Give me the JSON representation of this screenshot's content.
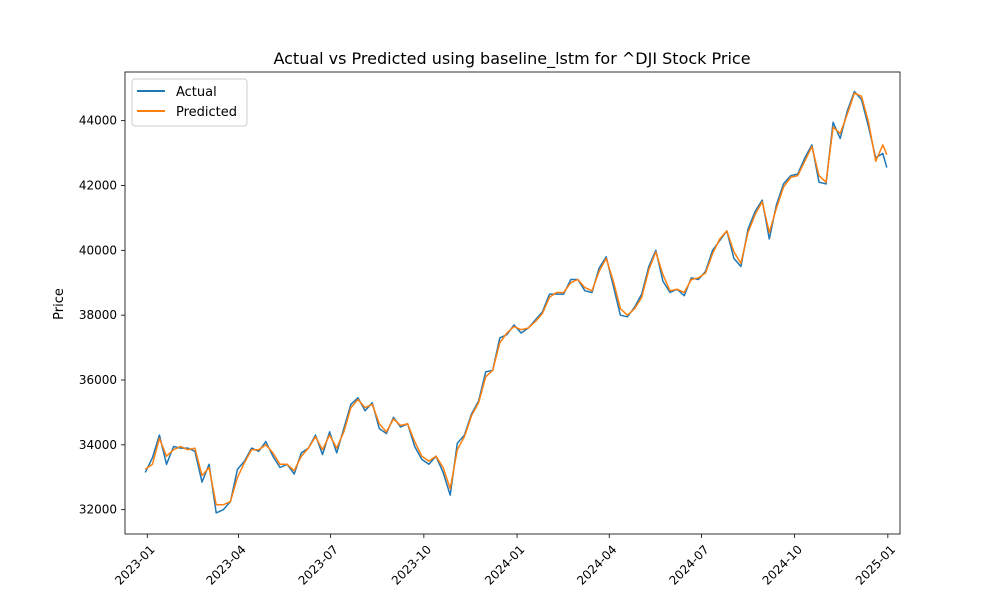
{
  "chart_data": {
    "type": "line",
    "title": "Actual vs Predicted using baseline_lstm for ^DJI Stock Price",
    "xlabel": "",
    "ylabel": "Price",
    "xlim": [
      "2022-12-10",
      "2025-01-13"
    ],
    "ylim": [
      31250,
      45500
    ],
    "x_ticks": [
      "2023-01",
      "2023-04",
      "2023-07",
      "2023-10",
      "2024-01",
      "2024-04",
      "2024-07",
      "2024-10",
      "2025-01"
    ],
    "y_ticks": [
      32000,
      34000,
      36000,
      38000,
      40000,
      42000,
      44000
    ],
    "grid": false,
    "legend_position": "top-left",
    "series": [
      {
        "name": "Actual",
        "color": "#1f77b4",
        "points": [
          [
            "2022-12-30",
            33150
          ],
          [
            "2023-01-06",
            33600
          ],
          [
            "2023-01-13",
            34300
          ],
          [
            "2023-01-20",
            33400
          ],
          [
            "2023-01-27",
            33950
          ],
          [
            "2023-02-03",
            33900
          ],
          [
            "2023-02-10",
            33900
          ],
          [
            "2023-02-17",
            33800
          ],
          [
            "2023-02-24",
            32850
          ],
          [
            "2023-03-03",
            33400
          ],
          [
            "2023-03-10",
            31900
          ],
          [
            "2023-03-17",
            32000
          ],
          [
            "2023-03-24",
            32250
          ],
          [
            "2023-03-31",
            33250
          ],
          [
            "2023-04-07",
            33500
          ],
          [
            "2023-04-14",
            33900
          ],
          [
            "2023-04-21",
            33800
          ],
          [
            "2023-04-28",
            34100
          ],
          [
            "2023-05-05",
            33650
          ],
          [
            "2023-05-12",
            33300
          ],
          [
            "2023-05-19",
            33400
          ],
          [
            "2023-05-26",
            33100
          ],
          [
            "2023-06-02",
            33750
          ],
          [
            "2023-06-09",
            33900
          ],
          [
            "2023-06-16",
            34300
          ],
          [
            "2023-06-23",
            33700
          ],
          [
            "2023-06-30",
            34400
          ],
          [
            "2023-07-07",
            33750
          ],
          [
            "2023-07-14",
            34500
          ],
          [
            "2023-07-21",
            35250
          ],
          [
            "2023-07-28",
            35450
          ],
          [
            "2023-08-04",
            35050
          ],
          [
            "2023-08-11",
            35300
          ],
          [
            "2023-08-18",
            34500
          ],
          [
            "2023-08-25",
            34350
          ],
          [
            "2023-09-01",
            34850
          ],
          [
            "2023-09-08",
            34550
          ],
          [
            "2023-09-15",
            34650
          ],
          [
            "2023-09-22",
            33950
          ],
          [
            "2023-09-29",
            33550
          ],
          [
            "2023-10-06",
            33400
          ],
          [
            "2023-10-13",
            33650
          ],
          [
            "2023-10-20",
            33150
          ],
          [
            "2023-10-27",
            32450
          ],
          [
            "2023-11-03",
            34050
          ],
          [
            "2023-11-10",
            34300
          ],
          [
            "2023-11-17",
            34950
          ],
          [
            "2023-11-24",
            35350
          ],
          [
            "2023-12-01",
            36250
          ],
          [
            "2023-12-08",
            36300
          ],
          [
            "2023-12-15",
            37300
          ],
          [
            "2023-12-22",
            37400
          ],
          [
            "2023-12-29",
            37700
          ],
          [
            "2024-01-05",
            37450
          ],
          [
            "2024-01-12",
            37600
          ],
          [
            "2024-01-19",
            37850
          ],
          [
            "2024-01-26",
            38100
          ],
          [
            "2024-02-02",
            38650
          ],
          [
            "2024-02-09",
            38650
          ],
          [
            "2024-02-16",
            38650
          ],
          [
            "2024-02-23",
            39100
          ],
          [
            "2024-03-01",
            39100
          ],
          [
            "2024-03-08",
            38750
          ],
          [
            "2024-03-15",
            38700
          ],
          [
            "2024-03-22",
            39450
          ],
          [
            "2024-03-29",
            39800
          ],
          [
            "2024-04-05",
            38900
          ],
          [
            "2024-04-12",
            38000
          ],
          [
            "2024-04-19",
            37950
          ],
          [
            "2024-04-26",
            38250
          ],
          [
            "2024-05-03",
            38650
          ],
          [
            "2024-05-10",
            39500
          ],
          [
            "2024-05-17",
            40000
          ],
          [
            "2024-05-24",
            39050
          ],
          [
            "2024-05-31",
            38700
          ],
          [
            "2024-06-07",
            38800
          ],
          [
            "2024-06-14",
            38600
          ],
          [
            "2024-06-21",
            39150
          ],
          [
            "2024-06-28",
            39100
          ],
          [
            "2024-07-05",
            39350
          ],
          [
            "2024-07-12",
            40000
          ],
          [
            "2024-07-19",
            40300
          ],
          [
            "2024-07-26",
            40600
          ],
          [
            "2024-08-02",
            39750
          ],
          [
            "2024-08-09",
            39500
          ],
          [
            "2024-08-16",
            40650
          ],
          [
            "2024-08-23",
            41200
          ],
          [
            "2024-08-30",
            41550
          ],
          [
            "2024-09-06",
            40350
          ],
          [
            "2024-09-13",
            41400
          ],
          [
            "2024-09-20",
            42050
          ],
          [
            "2024-09-27",
            42300
          ],
          [
            "2024-10-04",
            42350
          ],
          [
            "2024-10-11",
            42850
          ],
          [
            "2024-10-18",
            43250
          ],
          [
            "2024-10-25",
            42100
          ],
          [
            "2024-11-01",
            42050
          ],
          [
            "2024-11-08",
            43950
          ],
          [
            "2024-11-15",
            43450
          ],
          [
            "2024-11-22",
            44300
          ],
          [
            "2024-11-29",
            44900
          ],
          [
            "2024-12-06",
            44650
          ],
          [
            "2024-12-13",
            43800
          ],
          [
            "2024-12-20",
            42850
          ],
          [
            "2024-12-27",
            42990
          ],
          [
            "2024-12-31",
            42550
          ]
        ]
      },
      {
        "name": "Predicted",
        "color": "#ff7f0e",
        "points": [
          [
            "2022-12-30",
            33250
          ],
          [
            "2023-01-06",
            33400
          ],
          [
            "2023-01-13",
            34200
          ],
          [
            "2023-01-20",
            33650
          ],
          [
            "2023-01-27",
            33850
          ],
          [
            "2023-02-03",
            33950
          ],
          [
            "2023-02-10",
            33850
          ],
          [
            "2023-02-17",
            33900
          ],
          [
            "2023-02-24",
            33050
          ],
          [
            "2023-03-03",
            33300
          ],
          [
            "2023-03-10",
            32150
          ],
          [
            "2023-03-17",
            32150
          ],
          [
            "2023-03-24",
            32250
          ],
          [
            "2023-03-31",
            33000
          ],
          [
            "2023-04-07",
            33450
          ],
          [
            "2023-04-14",
            33850
          ],
          [
            "2023-04-21",
            33850
          ],
          [
            "2023-04-28",
            34000
          ],
          [
            "2023-05-05",
            33750
          ],
          [
            "2023-05-12",
            33400
          ],
          [
            "2023-05-19",
            33400
          ],
          [
            "2023-05-26",
            33200
          ],
          [
            "2023-06-02",
            33650
          ],
          [
            "2023-06-09",
            33900
          ],
          [
            "2023-06-16",
            34250
          ],
          [
            "2023-06-23",
            33850
          ],
          [
            "2023-06-30",
            34300
          ],
          [
            "2023-07-07",
            33900
          ],
          [
            "2023-07-14",
            34400
          ],
          [
            "2023-07-21",
            35150
          ],
          [
            "2023-07-28",
            35400
          ],
          [
            "2023-08-04",
            35150
          ],
          [
            "2023-08-11",
            35250
          ],
          [
            "2023-08-18",
            34650
          ],
          [
            "2023-08-25",
            34400
          ],
          [
            "2023-09-01",
            34800
          ],
          [
            "2023-09-08",
            34600
          ],
          [
            "2023-09-15",
            34650
          ],
          [
            "2023-09-22",
            34100
          ],
          [
            "2023-09-29",
            33650
          ],
          [
            "2023-10-06",
            33500
          ],
          [
            "2023-10-13",
            33650
          ],
          [
            "2023-10-20",
            33300
          ],
          [
            "2023-10-27",
            32650
          ],
          [
            "2023-11-03",
            33850
          ],
          [
            "2023-11-10",
            34250
          ],
          [
            "2023-11-17",
            34900
          ],
          [
            "2023-11-24",
            35300
          ],
          [
            "2023-12-01",
            36100
          ],
          [
            "2023-12-08",
            36300
          ],
          [
            "2023-12-15",
            37150
          ],
          [
            "2023-12-22",
            37450
          ],
          [
            "2023-12-29",
            37650
          ],
          [
            "2024-01-05",
            37550
          ],
          [
            "2024-01-12",
            37600
          ],
          [
            "2024-01-19",
            37800
          ],
          [
            "2024-01-26",
            38050
          ],
          [
            "2024-02-02",
            38550
          ],
          [
            "2024-02-09",
            38700
          ],
          [
            "2024-02-16",
            38700
          ],
          [
            "2024-02-23",
            39000
          ],
          [
            "2024-03-01",
            39100
          ],
          [
            "2024-03-08",
            38850
          ],
          [
            "2024-03-15",
            38750
          ],
          [
            "2024-03-22",
            39350
          ],
          [
            "2024-03-29",
            39750
          ],
          [
            "2024-04-05",
            39050
          ],
          [
            "2024-04-12",
            38200
          ],
          [
            "2024-04-19",
            38000
          ],
          [
            "2024-04-26",
            38200
          ],
          [
            "2024-05-03",
            38550
          ],
          [
            "2024-05-10",
            39400
          ],
          [
            "2024-05-17",
            39950
          ],
          [
            "2024-05-24",
            39250
          ],
          [
            "2024-05-31",
            38750
          ],
          [
            "2024-06-07",
            38800
          ],
          [
            "2024-06-14",
            38700
          ],
          [
            "2024-06-21",
            39100
          ],
          [
            "2024-06-28",
            39150
          ],
          [
            "2024-07-05",
            39300
          ],
          [
            "2024-07-12",
            39900
          ],
          [
            "2024-07-19",
            40350
          ],
          [
            "2024-07-26",
            40600
          ],
          [
            "2024-08-02",
            39950
          ],
          [
            "2024-08-09",
            39600
          ],
          [
            "2024-08-16",
            40550
          ],
          [
            "2024-08-23",
            41100
          ],
          [
            "2024-08-30",
            41500
          ],
          [
            "2024-09-06",
            40550
          ],
          [
            "2024-09-13",
            41300
          ],
          [
            "2024-09-20",
            41950
          ],
          [
            "2024-09-27",
            42250
          ],
          [
            "2024-10-04",
            42300
          ],
          [
            "2024-10-11",
            42750
          ],
          [
            "2024-10-18",
            43200
          ],
          [
            "2024-10-25",
            42300
          ],
          [
            "2024-11-01",
            42100
          ],
          [
            "2024-11-08",
            43800
          ],
          [
            "2024-11-15",
            43600
          ],
          [
            "2024-11-22",
            44200
          ],
          [
            "2024-11-29",
            44850
          ],
          [
            "2024-12-06",
            44750
          ],
          [
            "2024-12-13",
            43950
          ],
          [
            "2024-12-20",
            42750
          ],
          [
            "2024-12-27",
            43250
          ],
          [
            "2024-12-31",
            42950
          ]
        ]
      }
    ]
  }
}
